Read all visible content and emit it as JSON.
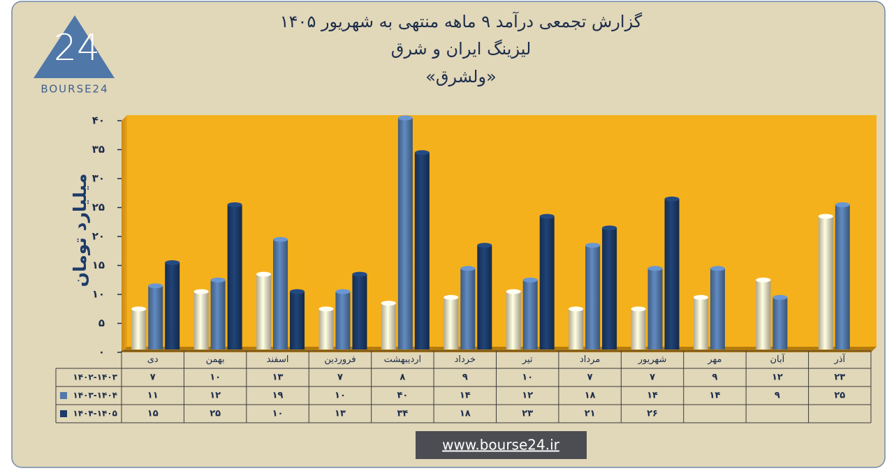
{
  "chart_data": {
    "type": "bar",
    "title": "گزارش تجمعی درآمد ۹ ماهه منتهی به شهریور ۱۴۰۵",
    "subtitle": "لیزینگ ایران و شرق",
    "symbol": "«ولشرق»",
    "y_label": "میلیارد تومان",
    "categories": [
      "دی",
      "بهمن",
      "اسفند",
      "فروردین",
      "اردیبهشت",
      "خرداد",
      "تیر",
      "مرداد",
      "شهریور",
      "مهر",
      "آبان",
      "آذر"
    ],
    "series": [
      {
        "name": "۱۴۰۲-۱۴۰۳",
        "color": "#e9dfc4",
        "values": [
          7,
          10,
          13,
          7,
          8,
          9,
          10,
          7,
          7,
          9,
          12,
          23
        ],
        "value_labels": [
          "۷",
          "۱۰",
          "۱۳",
          "۷",
          "۸",
          "۹",
          "۱۰",
          "۷",
          "۷",
          "۹",
          "۱۲",
          "۲۳"
        ]
      },
      {
        "name": "۱۴۰۳-۱۴۰۴",
        "color": "#5479a9",
        "values": [
          11,
          12,
          19,
          10,
          40,
          14,
          12,
          18,
          14,
          14,
          9,
          25
        ],
        "value_labels": [
          "۱۱",
          "۱۲",
          "۱۹",
          "۱۰",
          "۴۰",
          "۱۴",
          "۱۲",
          "۱۸",
          "۱۴",
          "۱۴",
          "۹",
          "۲۵"
        ]
      },
      {
        "name": "۱۴۰۴-۱۴۰۵",
        "color": "#1c3b68",
        "values": [
          15,
          25,
          10,
          13,
          34,
          18,
          23,
          21,
          26,
          null,
          null,
          null
        ],
        "value_labels": [
          "۱۵",
          "۲۵",
          "۱۰",
          "۱۳",
          "۳۴",
          "۱۸",
          "۲۳",
          "۲۱",
          "۲۶",
          null,
          null,
          null
        ]
      }
    ],
    "ylim": [
      0,
      40
    ],
    "yticks": [
      {
        "value": 0,
        "label": "۰"
      },
      {
        "value": 5,
        "label": "۵"
      },
      {
        "value": 10,
        "label": "۱۰"
      },
      {
        "value": 15,
        "label": "۱۵"
      },
      {
        "value": 20,
        "label": "۲۰"
      },
      {
        "value": 25,
        "label": "۲۵"
      },
      {
        "value": 30,
        "label": "۳۰"
      },
      {
        "value": 35,
        "label": "۳۵"
      },
      {
        "value": 40,
        "label": "۴۰"
      }
    ],
    "plot_color": "#f5b11c"
  },
  "logo": {
    "number": "24",
    "text": "BOURSE24"
  },
  "footer": "www.bourse24.ir"
}
